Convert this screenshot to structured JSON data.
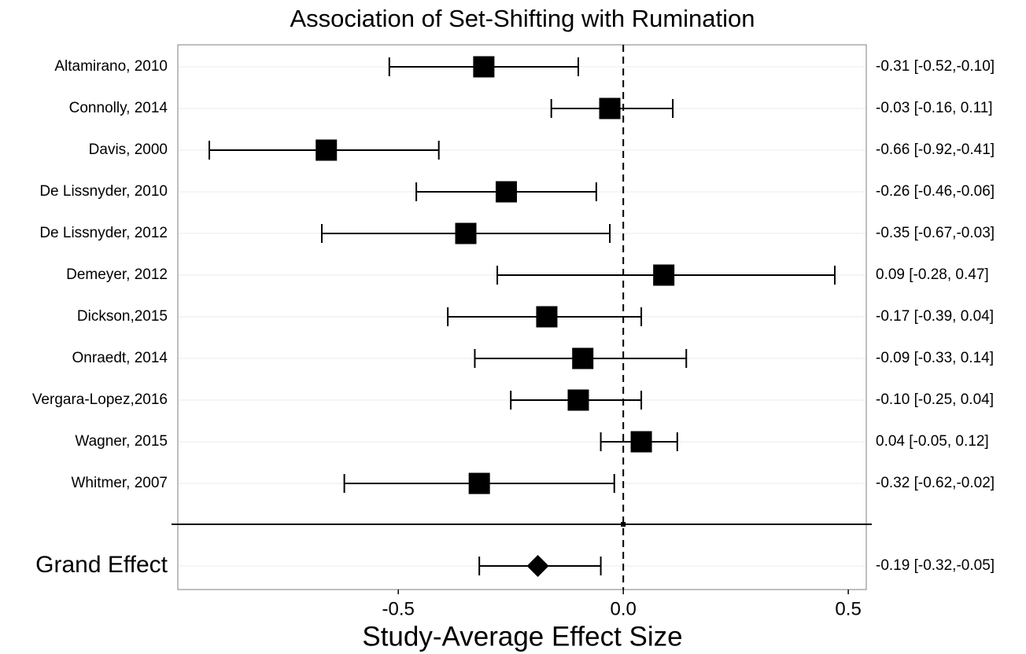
{
  "chart_data": {
    "type": "forest",
    "title": "Association of Set-Shifting with Rumination",
    "xlabel": "Study-Average Effect Size",
    "categories": [
      "Altamirano, 2010",
      "Connolly, 2014",
      "Davis, 2000",
      "De Lissnyder, 2010",
      "De Lissnyder, 2012",
      "Demeyer, 2012",
      "Dickson,2015",
      "Onraedt, 2014",
      "Vergara-Lopez,2016",
      "Wagner, 2015",
      "Whitmer, 2007"
    ],
    "values": [
      -0.31,
      -0.03,
      -0.66,
      -0.26,
      -0.35,
      0.09,
      -0.17,
      -0.09,
      -0.1,
      0.04,
      -0.32
    ],
    "lower": [
      -0.52,
      -0.16,
      -0.92,
      -0.46,
      -0.67,
      -0.28,
      -0.39,
      -0.33,
      -0.25,
      -0.05,
      -0.62
    ],
    "upper": [
      -0.1,
      0.11,
      -0.41,
      -0.06,
      -0.03,
      0.47,
      0.04,
      0.14,
      0.04,
      0.12,
      -0.02
    ],
    "value_labels": [
      "-0.31 [-0.52,-0.10]",
      "-0.03 [-0.16, 0.11]",
      "-0.66 [-0.92,-0.41]",
      "-0.26 [-0.46,-0.06]",
      "-0.35 [-0.67,-0.03]",
      "0.09 [-0.28, 0.47]",
      "-0.17 [-0.39, 0.04]",
      "-0.09 [-0.33, 0.14]",
      "-0.10 [-0.25, 0.04]",
      "0.04 [-0.05, 0.12]",
      "-0.32 [-0.62,-0.02]"
    ],
    "summary": {
      "label": "Grand Effect",
      "value": -0.19,
      "lower": -0.32,
      "upper": -0.05,
      "value_label": "-0.19 [-0.32,-0.05]"
    },
    "xlim": [
      -0.99,
      0.54
    ],
    "xticks": [
      -0.5,
      {
        "value": 0,
        "label": "0.0"
      },
      0.5
    ],
    "reference_line": 0,
    "color": "#000000",
    "grid": true
  }
}
